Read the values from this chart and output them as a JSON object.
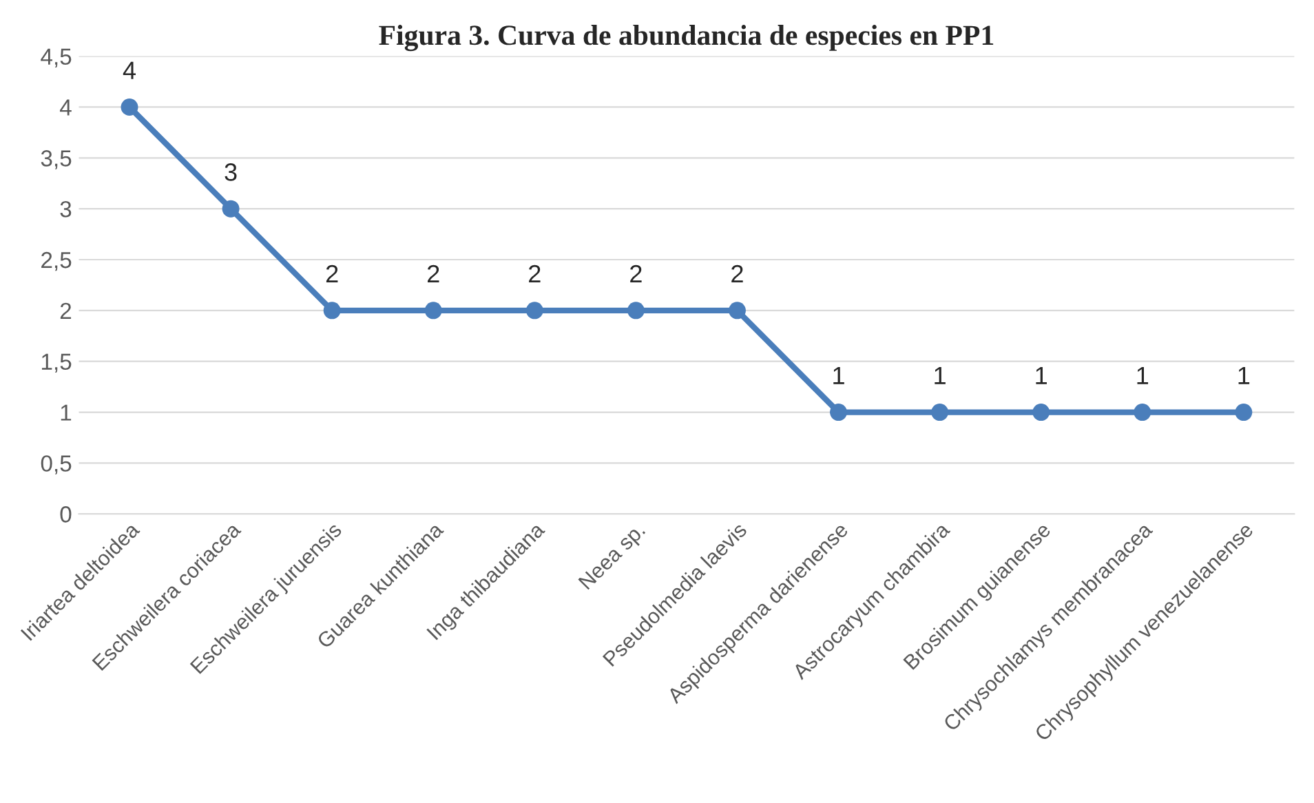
{
  "chart_data": {
    "type": "line",
    "title": "Figura 3. Curva de abundancia de especies en PP1",
    "categories": [
      "Iriartea deltoidea",
      "Eschweilera coriacea",
      "Eschweilera juruensis",
      "Guarea kunthiana",
      "Inga thibaudiana",
      "Neea sp.",
      "Pseudolmedia laevis",
      "Aspidosperma darienense",
      "Astrocaryum chambira",
      "Brosimum guianense",
      "Chrysochlamys membranacea",
      "Chrysophyllum venezuelanense"
    ],
    "series": [
      {
        "color": "#4a7ebb",
        "values": [
          4,
          3,
          2,
          2,
          2,
          2,
          2,
          1,
          1,
          1,
          1,
          1
        ]
      }
    ],
    "ylim": [
      0,
      4.5
    ],
    "yticks": [
      0,
      {
        "value": 0.5,
        "label": "0,5"
      },
      1,
      {
        "value": 1.5,
        "label": "1,5"
      },
      2,
      {
        "value": 2.5,
        "label": "2,5"
      },
      3,
      {
        "value": 3.5,
        "label": "3,5"
      },
      4,
      {
        "value": 4.5,
        "label": "4,5"
      }
    ],
    "grid": "y",
    "marker": "circle",
    "line_style": "solid",
    "data_labels": true
  }
}
